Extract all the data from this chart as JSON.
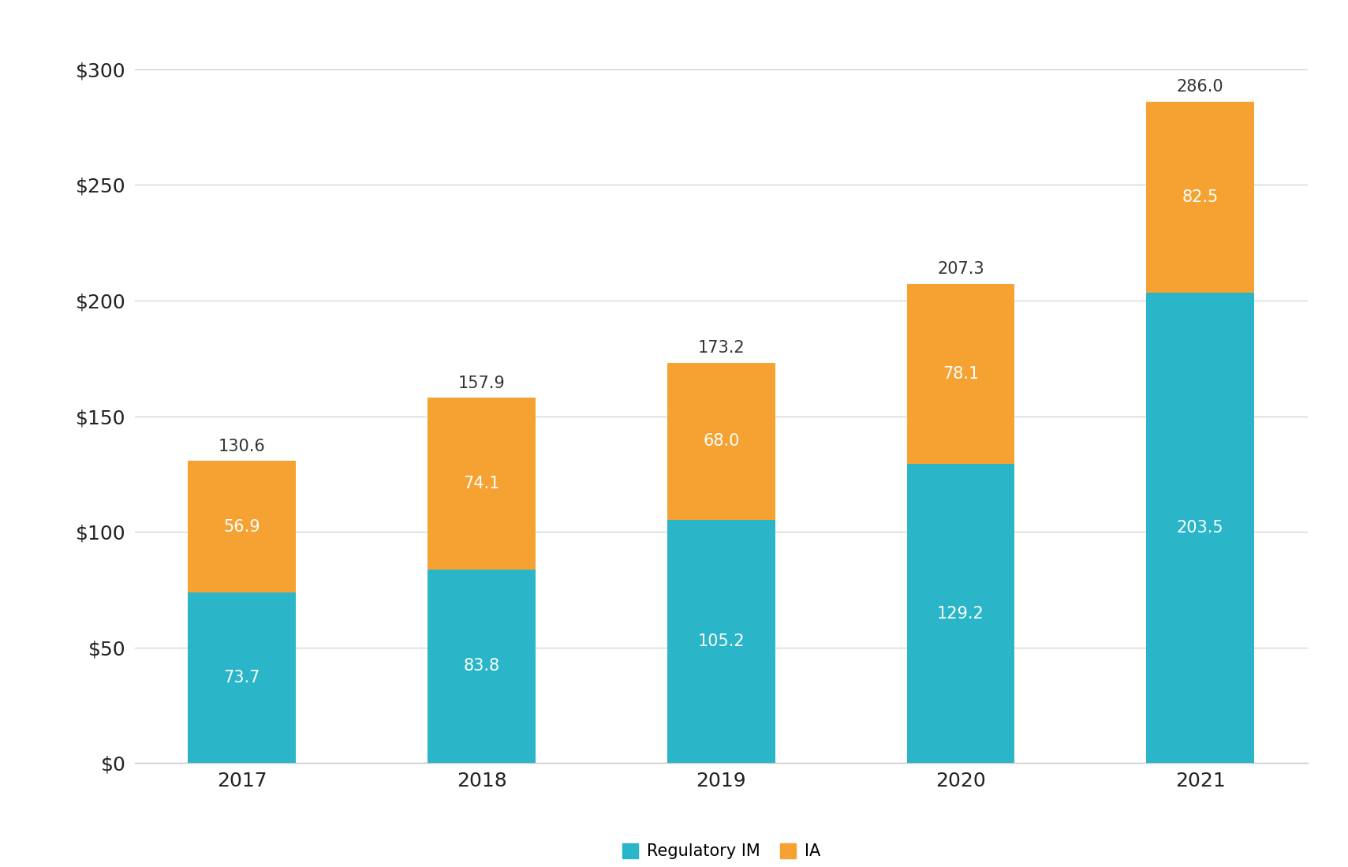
{
  "categories": [
    "2017",
    "2018",
    "2019",
    "2020",
    "2021"
  ],
  "regulatory_im": [
    73.7,
    83.8,
    105.2,
    129.2,
    203.5
  ],
  "ia": [
    56.9,
    74.1,
    68.0,
    78.1,
    82.5
  ],
  "totals": [
    130.6,
    157.9,
    173.2,
    207.3,
    286.0
  ],
  "color_regulatory_im": "#2ab5c8",
  "color_ia": "#f5a233",
  "legend_regulatory_im": "Regulatory IM",
  "legend_ia": "IA",
  "ylim": [
    0,
    315
  ],
  "yticks": [
    0,
    50,
    100,
    150,
    200,
    250,
    300
  ],
  "ytick_labels": [
    "$0",
    "$50",
    "$100",
    "$150",
    "$200",
    "$250",
    "$300"
  ],
  "background_color": "#ffffff",
  "bar_width": 0.45,
  "label_color_bottom": "#ffffff",
  "label_color_top": "#333333",
  "label_fontsize": 15,
  "total_label_fontsize": 15,
  "axis_tick_fontsize": 18,
  "legend_fontsize": 15,
  "grid_color": "#cccccc",
  "border_color": "#c8c8c8"
}
